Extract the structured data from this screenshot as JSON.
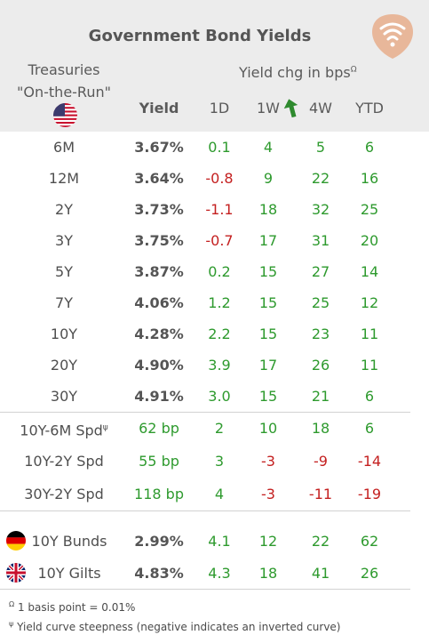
{
  "header": {
    "title": "Government Bond Yields",
    "treasuries_line1": "Treasuries",
    "treasuries_line2": "\"On-the-Run\"",
    "yield_chg": "Yield chg in bps",
    "yield_chg_marker": "Ω",
    "columns": {
      "yield": "Yield",
      "d1": "1D",
      "w1": "1W",
      "w4": "4W",
      "ytd": "YTD"
    }
  },
  "treasuries": [
    {
      "label": "6M",
      "yield": "3.67%",
      "d1": "0.1",
      "w1": "4",
      "w4": "5",
      "ytd": "6"
    },
    {
      "label": "12M",
      "yield": "3.64%",
      "d1": "-0.8",
      "w1": "9",
      "w4": "22",
      "ytd": "16"
    },
    {
      "label": "2Y",
      "yield": "3.73%",
      "d1": "-1.1",
      "w1": "18",
      "w4": "32",
      "ytd": "25"
    },
    {
      "label": "3Y",
      "yield": "3.75%",
      "d1": "-0.7",
      "w1": "17",
      "w4": "31",
      "ytd": "20"
    },
    {
      "label": "5Y",
      "yield": "3.87%",
      "d1": "0.2",
      "w1": "15",
      "w4": "27",
      "ytd": "14"
    },
    {
      "label": "7Y",
      "yield": "4.06%",
      "d1": "1.2",
      "w1": "15",
      "w4": "25",
      "ytd": "12"
    },
    {
      "label": "10Y",
      "yield": "4.28%",
      "d1": "2.2",
      "w1": "15",
      "w4": "23",
      "ytd": "11"
    },
    {
      "label": "20Y",
      "yield": "4.90%",
      "d1": "3.9",
      "w1": "17",
      "w4": "26",
      "ytd": "11"
    },
    {
      "label": "30Y",
      "yield": "4.91%",
      "d1": "3.0",
      "w1": "15",
      "w4": "21",
      "ytd": "6"
    }
  ],
  "spreads": [
    {
      "label": "10Y-6M Spd",
      "marker": "ψ",
      "yield": "62 bp",
      "d1": "2",
      "w1": "10",
      "w4": "18",
      "ytd": "6"
    },
    {
      "label": "10Y-2Y Spd",
      "marker": "",
      "yield": "55 bp",
      "d1": "3",
      "w1": "-3",
      "w4": "-9",
      "ytd": "-14"
    },
    {
      "label": "30Y-2Y Spd",
      "marker": "",
      "yield": "118 bp",
      "d1": "4",
      "w1": "-3",
      "w4": "-11",
      "ytd": "-19"
    }
  ],
  "international": [
    {
      "label": "10Y Bunds",
      "flag": "germany-flag-icon",
      "yield": "2.99%",
      "d1": "4.1",
      "w1": "12",
      "w4": "22",
      "ytd": "62"
    },
    {
      "label": "10Y Gilts",
      "flag": "uk-flag-icon",
      "yield": "4.83%",
      "d1": "4.3",
      "w1": "18",
      "w4": "41",
      "ytd": "26"
    }
  ],
  "footnotes": [
    {
      "marker": "Ω",
      "text": " 1 basis point = 0.01%"
    },
    {
      "marker": "ψ",
      "text": " Yield curve steepness (negative indicates an inverted curve)"
    }
  ],
  "icons": {
    "logo": "wifi-tag-logo-icon",
    "us_flag": "us-flag-icon",
    "trend_arrow": "up-arrow-icon"
  },
  "colors": {
    "positive": "#2e9a2e",
    "negative": "#c42020",
    "header_bg": "#ececec",
    "logo": "#e8b79a"
  }
}
